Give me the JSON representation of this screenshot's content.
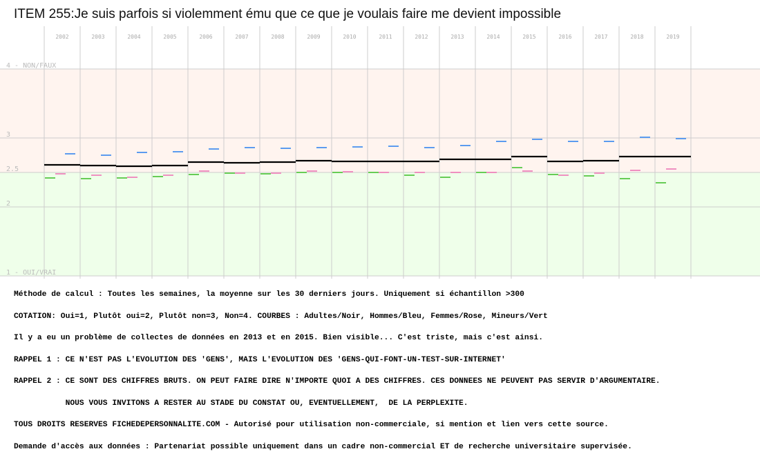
{
  "title": "ITEM 255:Je suis parfois si violemment ému que ce que je voulais faire me devient impossible",
  "chart_data": {
    "type": "line",
    "categories": [
      "2002",
      "2003",
      "2004",
      "2005",
      "2006",
      "2007",
      "2008",
      "2009",
      "2010",
      "2011",
      "2012",
      "2013",
      "2014",
      "2015",
      "2016",
      "2017",
      "2018",
      "2019"
    ],
    "ylim": [
      1,
      4
    ],
    "y_tick_labels": [
      {
        "value": 4,
        "label": "4 - NON/FAUX"
      },
      {
        "value": 3,
        "label": "3"
      },
      {
        "value": 2.5,
        "label": "2.5"
      },
      {
        "value": 2,
        "label": "2"
      },
      {
        "value": 1,
        "label": "1 - OUI/VRAI"
      }
    ],
    "grid": true,
    "series": [
      {
        "name": "Adultes",
        "color": "#000000",
        "values": [
          2.61,
          2.6,
          2.59,
          2.6,
          2.65,
          2.64,
          2.65,
          2.67,
          2.66,
          2.66,
          2.66,
          2.69,
          2.69,
          2.73,
          2.66,
          2.67,
          2.73,
          2.73
        ]
      },
      {
        "name": "Hommes",
        "color": "#5b9bef",
        "values": [
          2.77,
          2.75,
          2.79,
          2.8,
          2.84,
          2.86,
          2.85,
          2.86,
          2.87,
          2.88,
          2.86,
          2.89,
          2.95,
          2.98,
          2.95,
          2.95,
          3.01,
          2.99
        ]
      },
      {
        "name": "Femmes",
        "color": "#ef8fc0",
        "values": [
          2.48,
          2.46,
          2.43,
          2.46,
          2.52,
          2.49,
          2.49,
          2.52,
          2.51,
          2.5,
          2.5,
          2.5,
          2.5,
          2.52,
          2.46,
          2.49,
          2.53,
          2.55
        ]
      },
      {
        "name": "Mineurs",
        "color": "#66cc55",
        "values": [
          2.42,
          2.41,
          2.42,
          2.44,
          2.47,
          2.49,
          2.48,
          2.5,
          2.5,
          2.5,
          2.46,
          2.43,
          2.5,
          2.57,
          2.47,
          2.45,
          2.41,
          2.35
        ]
      }
    ],
    "colors": {
      "upper_band": "#fff4ef",
      "lower_band": "#efffea",
      "grid": "#cccccc",
      "axis_label": "#bbbbbb"
    }
  },
  "notes": [
    "Méthode de calcul : Toutes les semaines, la moyenne sur les 30 derniers jours. Uniquement si échantillon >300",
    "COTATION: Oui=1, Plutôt oui=2, Plutôt non=3, Non=4. COURBES : Adultes/Noir, Hommes/Bleu, Femmes/Rose, Mineurs/Vert",
    "Il y a eu un problème de collectes de données en 2013 et en 2015. Bien visible... C'est triste, mais c'est ainsi.",
    "RAPPEL 1 : CE N'EST PAS L'EVOLUTION DES 'GENS', MAIS L'EVOLUTION DES 'GENS-QUI-FONT-UN-TEST-SUR-INTERNET'",
    "RAPPEL 2 : CE SONT DES CHIFFRES BRUTS. ON PEUT FAIRE DIRE N'IMPORTE QUOI A DES CHIFFRES. CES DONNEES NE PEUVENT PAS SERVIR D'ARGUMENTAIRE.",
    "           NOUS VOUS INVITONS A RESTER AU STADE DU CONSTAT OU, EVENTUELLEMENT,  DE LA PERPLEXITE.",
    "TOUS DROITS RESERVES FICHEDEPERSONNALITE.COM - Autorisé pour utilisation non-commerciale, si mention et lien vers cette source.",
    "Demande d'accès aux données : Partenariat possible uniquement dans un cadre non-commercial ET de recherche universitaire supervisée."
  ]
}
